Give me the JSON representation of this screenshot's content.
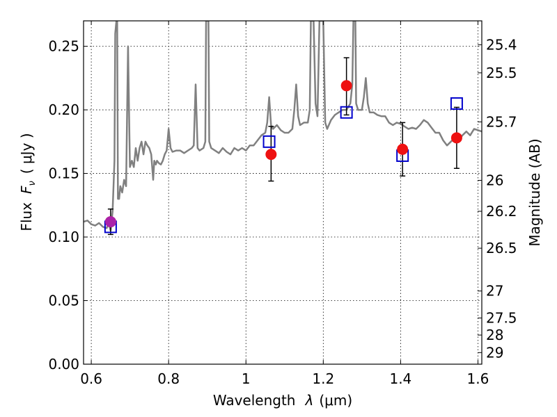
{
  "chart_data": {
    "type": "scatter",
    "xlabel_text": "Wavelength",
    "xlabel_symbol": "λ",
    "xlabel_unit": "(μm)",
    "ylabel_text": "Flux",
    "ylabel_symbol": "F",
    "ylabel_sub": "ν",
    "ylabel_unit": "( μJy )",
    "y2label": "Magnitude (AB)",
    "xlim": [
      0.58,
      1.61
    ],
    "ylim": [
      0.0,
      0.27
    ],
    "x_ticks": [
      {
        "value": 0.6,
        "label": "0.6"
      },
      {
        "value": 0.8,
        "label": "0.8"
      },
      {
        "value": 1.0,
        "label": "1"
      },
      {
        "value": 1.2,
        "label": "1.2"
      },
      {
        "value": 1.4,
        "label": "1.4"
      },
      {
        "value": 1.6,
        "label": "1.6"
      }
    ],
    "y_ticks": [
      {
        "value": 0.0,
        "label": "0.00"
      },
      {
        "value": 0.05,
        "label": "0.05"
      },
      {
        "value": 0.1,
        "label": "0.10"
      },
      {
        "value": 0.15,
        "label": "0.15"
      },
      {
        "value": 0.2,
        "label": "0.20"
      },
      {
        "value": 0.25,
        "label": "0.25"
      }
    ],
    "y2_ticks": [
      {
        "label": "25.4",
        "mag": 25.4
      },
      {
        "label": "25.5",
        "mag": 25.5
      },
      {
        "label": "25.7",
        "mag": 25.7
      },
      {
        "label": "26",
        "mag": 26.0
      },
      {
        "label": "26.2",
        "mag": 26.2
      },
      {
        "label": "26.5",
        "mag": 26.5
      },
      {
        "label": "27",
        "mag": 27.0
      },
      {
        "label": "27.5",
        "mag": 27.5
      },
      {
        "label": "28",
        "mag": 28.0
      },
      {
        "label": "29",
        "mag": 29.0
      }
    ],
    "grid": true,
    "series": [
      {
        "kind": "model-spectrum",
        "color": "#808080",
        "points": [
          [
            0.58,
            0.112
          ],
          [
            0.59,
            0.113
          ],
          [
            0.6,
            0.11
          ],
          [
            0.61,
            0.109
          ],
          [
            0.62,
            0.111
          ],
          [
            0.63,
            0.108
          ],
          [
            0.64,
            0.107
          ],
          [
            0.645,
            0.111
          ],
          [
            0.65,
            0.105
          ],
          [
            0.655,
            0.12
          ],
          [
            0.66,
            0.16
          ],
          [
            0.662,
            0.26
          ],
          [
            0.665,
            0.27
          ],
          [
            0.667,
            0.27
          ],
          [
            0.669,
            0.13
          ],
          [
            0.672,
            0.13
          ],
          [
            0.675,
            0.14
          ],
          [
            0.68,
            0.135
          ],
          [
            0.685,
            0.145
          ],
          [
            0.69,
            0.14
          ],
          [
            0.695,
            0.25
          ],
          [
            0.7,
            0.155
          ],
          [
            0.705,
            0.16
          ],
          [
            0.71,
            0.155
          ],
          [
            0.715,
            0.17
          ],
          [
            0.72,
            0.16
          ],
          [
            0.725,
            0.17
          ],
          [
            0.73,
            0.175
          ],
          [
            0.735,
            0.165
          ],
          [
            0.74,
            0.175
          ],
          [
            0.745,
            0.172
          ],
          [
            0.75,
            0.17
          ],
          [
            0.755,
            0.165
          ],
          [
            0.76,
            0.145
          ],
          [
            0.763,
            0.16
          ],
          [
            0.767,
            0.157
          ],
          [
            0.77,
            0.16
          ],
          [
            0.775,
            0.158
          ],
          [
            0.78,
            0.157
          ],
          [
            0.785,
            0.16
          ],
          [
            0.79,
            0.165
          ],
          [
            0.795,
            0.168
          ],
          [
            0.8,
            0.185
          ],
          [
            0.805,
            0.17
          ],
          [
            0.81,
            0.167
          ],
          [
            0.82,
            0.168
          ],
          [
            0.83,
            0.168
          ],
          [
            0.84,
            0.166
          ],
          [
            0.85,
            0.168
          ],
          [
            0.86,
            0.17
          ],
          [
            0.865,
            0.172
          ],
          [
            0.87,
            0.22
          ],
          [
            0.875,
            0.17
          ],
          [
            0.88,
            0.168
          ],
          [
            0.89,
            0.17
          ],
          [
            0.895,
            0.175
          ],
          [
            0.897,
            0.27
          ],
          [
            0.903,
            0.27
          ],
          [
            0.905,
            0.175
          ],
          [
            0.91,
            0.17
          ],
          [
            0.92,
            0.168
          ],
          [
            0.93,
            0.166
          ],
          [
            0.94,
            0.17
          ],
          [
            0.95,
            0.167
          ],
          [
            0.96,
            0.165
          ],
          [
            0.97,
            0.17
          ],
          [
            0.98,
            0.168
          ],
          [
            0.99,
            0.17
          ],
          [
            1.0,
            0.168
          ],
          [
            1.01,
            0.172
          ],
          [
            1.02,
            0.172
          ],
          [
            1.03,
            0.176
          ],
          [
            1.04,
            0.18
          ],
          [
            1.05,
            0.182
          ],
          [
            1.055,
            0.19
          ],
          [
            1.06,
            0.21
          ],
          [
            1.065,
            0.188
          ],
          [
            1.07,
            0.185
          ],
          [
            1.08,
            0.188
          ],
          [
            1.09,
            0.184
          ],
          [
            1.1,
            0.182
          ],
          [
            1.11,
            0.182
          ],
          [
            1.12,
            0.185
          ],
          [
            1.125,
            0.2
          ],
          [
            1.13,
            0.22
          ],
          [
            1.135,
            0.195
          ],
          [
            1.14,
            0.188
          ],
          [
            1.15,
            0.19
          ],
          [
            1.16,
            0.19
          ],
          [
            1.165,
            0.2
          ],
          [
            1.168,
            0.27
          ],
          [
            1.175,
            0.27
          ],
          [
            1.18,
            0.205
          ],
          [
            1.185,
            0.195
          ],
          [
            1.19,
            0.27
          ],
          [
            1.2,
            0.27
          ],
          [
            1.205,
            0.19
          ],
          [
            1.21,
            0.185
          ],
          [
            1.22,
            0.192
          ],
          [
            1.23,
            0.196
          ],
          [
            1.24,
            0.198
          ],
          [
            1.25,
            0.2
          ],
          [
            1.26,
            0.2
          ],
          [
            1.27,
            0.205
          ],
          [
            1.275,
            0.22
          ],
          [
            1.278,
            0.27
          ],
          [
            1.283,
            0.27
          ],
          [
            1.285,
            0.205
          ],
          [
            1.29,
            0.2
          ],
          [
            1.3,
            0.2
          ],
          [
            1.305,
            0.21
          ],
          [
            1.31,
            0.225
          ],
          [
            1.315,
            0.205
          ],
          [
            1.32,
            0.198
          ],
          [
            1.33,
            0.198
          ],
          [
            1.34,
            0.196
          ],
          [
            1.35,
            0.195
          ],
          [
            1.36,
            0.195
          ],
          [
            1.37,
            0.19
          ],
          [
            1.38,
            0.188
          ],
          [
            1.39,
            0.19
          ],
          [
            1.4,
            0.189
          ],
          [
            1.41,
            0.187
          ],
          [
            1.42,
            0.185
          ],
          [
            1.43,
            0.186
          ],
          [
            1.44,
            0.185
          ],
          [
            1.45,
            0.188
          ],
          [
            1.46,
            0.192
          ],
          [
            1.47,
            0.19
          ],
          [
            1.48,
            0.186
          ],
          [
            1.49,
            0.182
          ],
          [
            1.5,
            0.182
          ],
          [
            1.51,
            0.176
          ],
          [
            1.52,
            0.172
          ],
          [
            1.53,
            0.175
          ],
          [
            1.54,
            0.178
          ],
          [
            1.55,
            0.176
          ],
          [
            1.56,
            0.18
          ],
          [
            1.57,
            0.183
          ],
          [
            1.58,
            0.18
          ],
          [
            1.59,
            0.185
          ],
          [
            1.6,
            0.184
          ],
          [
            1.61,
            0.183
          ]
        ]
      },
      {
        "kind": "observed",
        "marker": "circle",
        "color": "#ee1111",
        "points": [
          {
            "x": 0.65,
            "y": 0.112,
            "ylo": 0.102,
            "yhi": 0.122
          },
          {
            "x": 1.065,
            "y": 0.165,
            "ylo": 0.144,
            "yhi": 0.187
          },
          {
            "x": 1.26,
            "y": 0.219,
            "ylo": 0.196,
            "yhi": 0.241
          },
          {
            "x": 1.405,
            "y": 0.169,
            "ylo": 0.148,
            "yhi": 0.19
          },
          {
            "x": 1.545,
            "y": 0.178,
            "ylo": 0.154,
            "yhi": 0.202
          }
        ]
      },
      {
        "kind": "model-photometry",
        "marker": "square",
        "color": "#0000cc",
        "points": [
          {
            "x": 0.65,
            "y": 0.108
          },
          {
            "x": 1.06,
            "y": 0.175
          },
          {
            "x": 1.26,
            "y": 0.198
          },
          {
            "x": 1.405,
            "y": 0.164
          },
          {
            "x": 1.545,
            "y": 0.205
          }
        ]
      }
    ],
    "highlight_point": {
      "x": 0.65,
      "y": 0.112,
      "color": "#aa22aa"
    }
  }
}
